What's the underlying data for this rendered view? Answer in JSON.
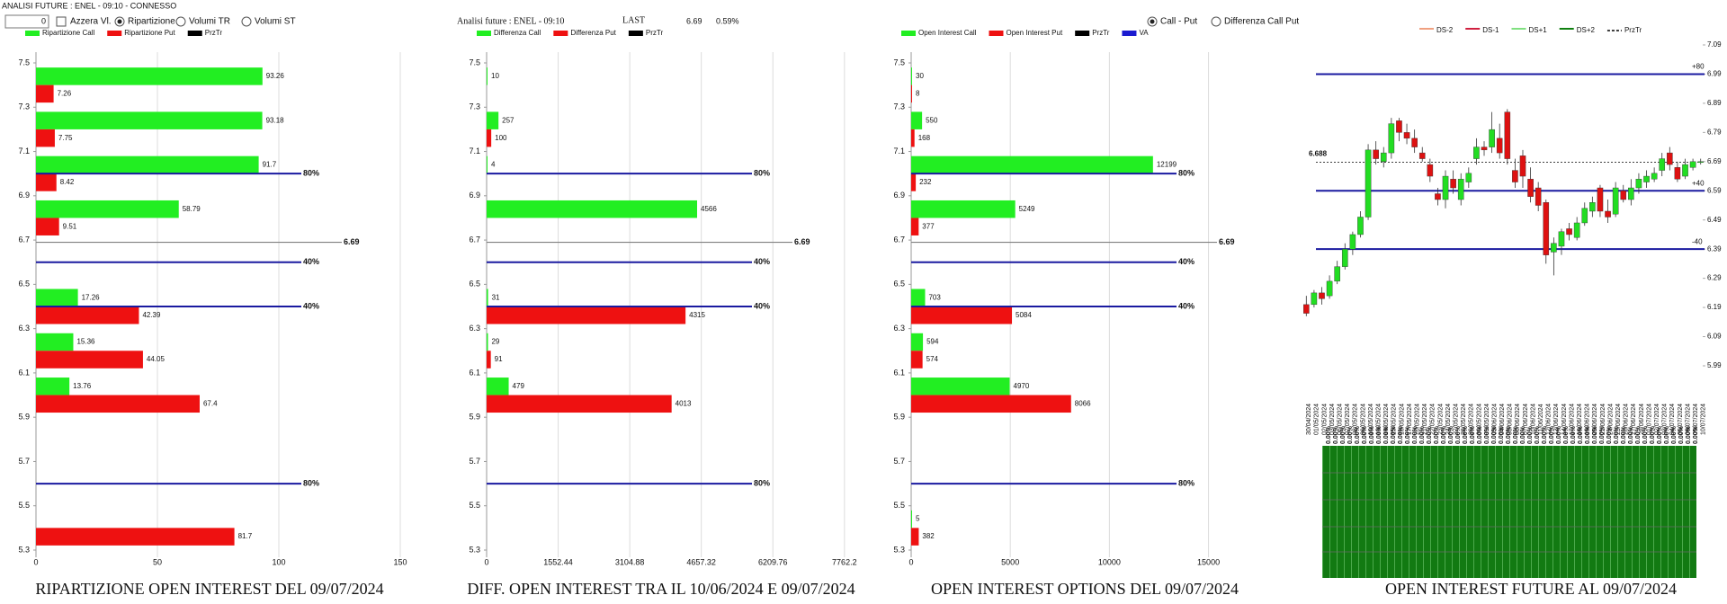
{
  "header": {
    "title": "ANALISI FUTURE : ENEL - 09:10 - CONNESSO",
    "input_value": 0,
    "checkbox": "Azzera Vl.",
    "radios": [
      "Ripartizione",
      "Volumi TR",
      "Volumi ST"
    ],
    "selected": 0
  },
  "info": {
    "title": "Analisi future : ENEL - 09:10",
    "last_label": "LAST",
    "last": 6.69,
    "change": "0.59%"
  },
  "view_radios": {
    "options": [
      "Call - Put",
      "Differenza Call Put"
    ],
    "selected": 0
  },
  "chart_data": [
    {
      "type": "hbar",
      "title": "RIPARTIZIONE OPEN INTEREST DEL 09/07/2024",
      "y": [
        7.4,
        7.2,
        7.0,
        6.8,
        6.4,
        6.2,
        6.0,
        5.4
      ],
      "series": [
        {
          "name": "Ripartizione Call",
          "color": "#22ee22",
          "values": [
            93.26,
            93.18,
            91.7,
            58.79,
            17.26,
            15.36,
            13.76,
            null
          ]
        },
        {
          "name": "Ripartizione Put",
          "color": "#ee1111",
          "values": [
            7.26,
            7.75,
            8.42,
            9.51,
            42.39,
            44.05,
            67.4,
            81.7
          ]
        }
      ],
      "legend_extra": [
        {
          "name": "PrzTr",
          "color": "#000000"
        }
      ],
      "ylim": [
        5.3,
        7.5
      ],
      "yticks": [
        5.3,
        5.5,
        5.7,
        5.9,
        6.1,
        6.3,
        6.5,
        6.7,
        6.9,
        7.1,
        7.3,
        7.5
      ],
      "xlim": [
        0,
        160
      ],
      "xticks": [
        0,
        50,
        100,
        150
      ],
      "grid": true,
      "ref_lines": [
        {
          "value": 7.0,
          "label": "80%",
          "color": "#1a1aa0"
        },
        {
          "value": 6.69,
          "color": "#808080"
        },
        {
          "value": 6.6,
          "label": "40%",
          "color": "#1a1aa0"
        },
        {
          "value": 6.4,
          "label": "40%",
          "color": "#1a1aa0"
        },
        {
          "value": 5.6,
          "label": "80%",
          "color": "#1a1aa0"
        }
      ]
    },
    {
      "type": "hbar",
      "title": "DIFF. OPEN INTEREST TRA IL 10/06/2024 E 09/07/2024",
      "y": [
        7.4,
        7.2,
        7.0,
        6.8,
        6.4,
        6.2,
        6.0,
        5.4
      ],
      "series": [
        {
          "name": "Differenza Call",
          "color": "#22ee22",
          "values": [
            10,
            257,
            4,
            4566,
            31,
            29,
            479,
            null
          ]
        },
        {
          "name": "Differenza Put",
          "color": "#ee1111",
          "values": [
            null,
            100,
            null,
            null,
            4315,
            91,
            4013,
            null
          ]
        }
      ],
      "legend_extra": [
        {
          "name": "PrzTr",
          "color": "#000000"
        }
      ],
      "ylim": [
        5.3,
        7.5
      ],
      "yticks": [
        5.3,
        5.5,
        5.7,
        5.9,
        6.1,
        6.3,
        6.5,
        6.7,
        6.9,
        7.1,
        7.3,
        7.5
      ],
      "xlim": [
        0,
        8000
      ],
      "xticks": [
        0,
        1552.44,
        3104.88,
        4657.32,
        6209.76,
        7762.2
      ],
      "grid": true,
      "ref_lines": [
        {
          "value": 7.0,
          "label": "80%",
          "color": "#1a1aa0"
        },
        {
          "value": 6.69,
          "color": "#808080"
        },
        {
          "value": 6.6,
          "label": "40%",
          "color": "#1a1aa0"
        },
        {
          "value": 6.4,
          "label": "40%",
          "color": "#1a1aa0"
        },
        {
          "value": 5.6,
          "label": "80%",
          "color": "#1a1aa0"
        }
      ]
    },
    {
      "type": "hbar",
      "title": "OPEN INTEREST OPTIONS DEL 09/07/2024",
      "y": [
        7.4,
        7.2,
        7.0,
        6.8,
        6.4,
        6.2,
        6.0,
        5.4
      ],
      "series": [
        {
          "name": "Open Interest Call",
          "color": "#22ee22",
          "values": [
            30,
            550,
            12199,
            5249,
            703,
            594,
            4970,
            5
          ]
        },
        {
          "name": "Open Interest Put",
          "color": "#ee1111",
          "values": [
            8,
            168,
            232,
            377,
            5084,
            574,
            8066,
            382
          ]
        }
      ],
      "legend_extra": [
        {
          "name": "PrzTr",
          "color": "#000000"
        },
        {
          "name": "VA",
          "color": "#1a1ad0"
        }
      ],
      "ylim": [
        5.3,
        7.5
      ],
      "yticks": [
        5.3,
        5.5,
        5.7,
        5.9,
        6.1,
        6.3,
        6.5,
        6.7,
        6.9,
        7.1,
        7.3,
        7.5
      ],
      "xlim": [
        0,
        15700
      ],
      "xticks": [
        0,
        5000,
        10000,
        15000
      ],
      "grid": true,
      "ref_lines": [
        {
          "value": 7.0,
          "label": "80%",
          "color": "#1a1aa0"
        },
        {
          "value": 6.69,
          "color": "#808080"
        },
        {
          "value": 6.6,
          "label": "40%",
          "color": "#1a1aa0"
        },
        {
          "value": 6.4,
          "label": "40%",
          "color": "#1a1aa0"
        },
        {
          "value": 5.6,
          "label": "80%",
          "color": "#1a1aa0"
        }
      ]
    },
    {
      "type": "candlestick",
      "x": [
        "30/04/2024",
        "01/05/2024",
        "02/05/2024",
        "03/05/2024",
        "06/05/2024",
        "07/05/2024",
        "08/05/2024",
        "09/05/2024",
        "10/05/2024",
        "13/05/2024",
        "14/05/2024",
        "15/05/2024",
        "16/05/2024",
        "17/05/2024",
        "20/05/2024",
        "21/05/2024",
        "22/05/2024",
        "23/05/2024",
        "24/05/2024",
        "27/05/2024",
        "28/05/2024",
        "29/05/2024",
        "30/05/2024",
        "31/05/2024",
        "03/06/2024",
        "04/06/2024",
        "05/06/2024",
        "06/06/2024",
        "07/06/2024",
        "10/06/2024",
        "11/06/2024",
        "12/06/2024",
        "13/06/2024",
        "14/06/2024",
        "17/06/2024",
        "18/06/2024",
        "19/06/2024",
        "20/06/2024",
        "21/06/2024",
        "24/06/2024",
        "25/06/2024",
        "26/06/2024",
        "27/06/2024",
        "28/06/2024",
        "01/07/2024",
        "02/07/2024",
        "03/07/2024",
        "04/07/2024",
        "05/07/2024",
        "08/07/2024",
        "09/07/2024",
        "10/07/2024"
      ],
      "open": [
        6.2,
        6.2,
        6.24,
        6.23,
        6.28,
        6.33,
        6.39,
        6.44,
        6.5,
        6.73,
        6.69,
        6.72,
        6.83,
        6.79,
        6.77,
        6.72,
        6.68,
        6.58,
        6.56,
        6.63,
        6.56,
        6.62,
        6.7,
        6.74,
        6.74,
        6.77,
        6.86,
        6.66,
        6.71,
        6.63,
        6.6,
        6.55,
        6.38,
        6.4,
        6.46,
        6.43,
        6.48,
        6.52,
        6.6,
        6.52,
        6.51,
        6.59,
        6.56,
        6.6,
        6.62,
        6.63,
        6.66,
        6.72,
        6.67,
        6.64,
        6.67,
        6.69
      ],
      "high": [
        6.23,
        6.25,
        6.26,
        6.3,
        6.35,
        6.41,
        6.45,
        6.52,
        6.75,
        6.76,
        6.74,
        6.84,
        6.84,
        6.82,
        6.8,
        6.74,
        6.7,
        6.6,
        6.66,
        6.66,
        6.65,
        6.67,
        6.77,
        6.76,
        6.86,
        6.82,
        6.87,
        6.7,
        6.73,
        6.67,
        6.62,
        6.56,
        6.43,
        6.46,
        6.48,
        6.5,
        6.55,
        6.57,
        6.61,
        6.56,
        6.62,
        6.61,
        6.63,
        6.65,
        6.66,
        6.67,
        6.72,
        6.74,
        6.69,
        6.7,
        6.7,
        6.7
      ],
      "low": [
        6.16,
        6.19,
        6.2,
        6.22,
        6.27,
        6.32,
        6.37,
        6.43,
        6.49,
        6.68,
        6.67,
        6.7,
        6.76,
        6.75,
        6.72,
        6.69,
        6.62,
        6.54,
        6.53,
        6.58,
        6.54,
        6.6,
        6.68,
        6.71,
        6.72,
        6.7,
        6.68,
        6.6,
        6.6,
        6.55,
        6.52,
        6.34,
        6.3,
        6.37,
        6.42,
        6.42,
        6.47,
        6.5,
        6.5,
        6.48,
        6.5,
        6.55,
        6.54,
        6.58,
        6.6,
        6.62,
        6.64,
        6.66,
        6.62,
        6.63,
        6.66,
        6.68
      ],
      "close": [
        6.17,
        6.24,
        6.22,
        6.28,
        6.33,
        6.39,
        6.44,
        6.5,
        6.73,
        6.7,
        6.72,
        6.82,
        6.79,
        6.77,
        6.74,
        6.7,
        6.64,
        6.56,
        6.64,
        6.6,
        6.63,
        6.65,
        6.74,
        6.73,
        6.8,
        6.72,
        6.7,
        6.62,
        6.64,
        6.57,
        6.54,
        6.37,
        6.41,
        6.45,
        6.44,
        6.48,
        6.53,
        6.55,
        6.52,
        6.5,
        6.6,
        6.56,
        6.6,
        6.63,
        6.64,
        6.65,
        6.7,
        6.68,
        6.63,
        6.68,
        6.69,
        6.69
      ],
      "up_color": "#22dd22",
      "down_color": "#dd1111",
      "ylim": [
        5.99,
        7.09
      ],
      "yticks": [
        5.99,
        6.09,
        6.19,
        6.29,
        6.39,
        6.49,
        6.59,
        6.69,
        6.79,
        6.89,
        6.99,
        7.09
      ],
      "legend": [
        {
          "name": "DS-2",
          "color": "#f0a080"
        },
        {
          "name": "DS-1",
          "color": "#d02040"
        },
        {
          "name": "DS+1",
          "color": "#80e080"
        },
        {
          "name": "DS+2",
          "color": "#108010"
        },
        {
          "name": "PrzTr",
          "color": "#000000",
          "dash": true
        }
      ],
      "ref_lines": [
        {
          "value": 6.99,
          "label": "+80",
          "color": "#1a1aa0"
        },
        {
          "value": 6.59,
          "label": "+40",
          "color": "#1a1aa0"
        },
        {
          "value": 6.39,
          "label": "-40",
          "color": "#1a1aa0"
        },
        {
          "value": 6.688,
          "color": "#000000",
          "dash": true
        }
      ]
    },
    {
      "type": "bar",
      "title": "OPEN INTEREST FUTURE AL 09/07/2024",
      "values": [
        0,
        0,
        0,
        0,
        0,
        0,
        0,
        0,
        0,
        0,
        0,
        0,
        0,
        0,
        0,
        0,
        0,
        0,
        0,
        0,
        0,
        0,
        0,
        0,
        0,
        0,
        0,
        0,
        0,
        0,
        0,
        0,
        0,
        0,
        0,
        0,
        0,
        0,
        0,
        0,
        0,
        0,
        0,
        0,
        0,
        0,
        0,
        0,
        0,
        0,
        0,
        0
      ],
      "value_labels": [
        "0.00%",
        "0.00%",
        "0.00%",
        "0.00%",
        "0.00%",
        "0.00%",
        "0.00%",
        "0.00%",
        "0.00%",
        "0.00%",
        "0.00%",
        "0.00%",
        "0.00%",
        "0.00%",
        "0.00%",
        "0.00%",
        "0.00%",
        "0.00%",
        "0.00%",
        "0.00%",
        "0.00%",
        "0.00%",
        "0.00%",
        "0.00%",
        "0.00%",
        "0.00%",
        "0.00%",
        "0.00%",
        "0.00%",
        "0.00%",
        "0.00%",
        "0.00%",
        "0.00%",
        "0.00%",
        "0.00%",
        "0.00%",
        "0.00%",
        "0.00%",
        "0.00%",
        "0.00%",
        "0.00%",
        "0.00%",
        "0.00%",
        "0.00%",
        "0.00%",
        "0.00%",
        "0.00%",
        "0.00%",
        "0.00%",
        "0.00%",
        "0.00%",
        "0.00%"
      ],
      "color": "#127a12",
      "ylim": [
        0,
        1
      ]
    }
  ]
}
